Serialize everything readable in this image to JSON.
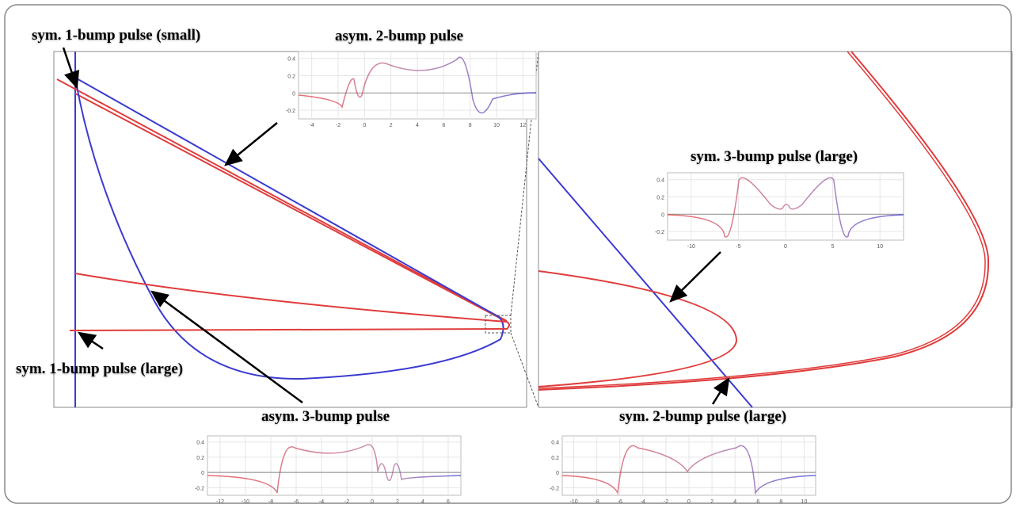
{
  "labels": {
    "sym_1_small": "sym. 1-bump pulse (small)",
    "asym_2": "asym. 2-bump pulse",
    "sym_3_large": "sym. 3-bump pulse (large)",
    "sym_1_large": "sym. 1-bump pulse (large)",
    "asym_3": "asym. 3-bump pulse",
    "sym_2_large": "sym. 2-bump pulse (large)"
  },
  "insets": {
    "asym_2": {
      "x_ticks": [
        "-4",
        "-2",
        "0",
        "2",
        "4",
        "6",
        "8",
        "10",
        "12"
      ],
      "y_ticks": [
        "0.4",
        "0.2",
        "0",
        "-0.2"
      ]
    },
    "sym_3_large": {
      "x_ticks": [
        "-10",
        "-5",
        "0",
        "5",
        "10"
      ],
      "y_ticks": [
        "0.4",
        "0.2",
        "0",
        "-0.2"
      ]
    },
    "asym_3": {
      "x_ticks": [
        "-12",
        "-10",
        "-8",
        "-6",
        "-4",
        "-2",
        "0",
        "2",
        "4",
        "6"
      ],
      "y_ticks": [
        "0.4",
        "0.2",
        "0",
        "-0.2"
      ]
    },
    "sym_2_large": {
      "x_ticks": [
        "-10",
        "-8",
        "-6",
        "-4",
        "-2",
        "0",
        "2",
        "4",
        "6",
        "8",
        "10"
      ],
      "y_ticks": [
        "0.4",
        "0.2",
        "0",
        "-0.2"
      ]
    }
  },
  "colors": {
    "red_curve": "#e03c3c",
    "blue_curve": "#3b3bd0",
    "axis": "#999999",
    "grid": "#e6e6e6",
    "arrow": "#000000"
  }
}
